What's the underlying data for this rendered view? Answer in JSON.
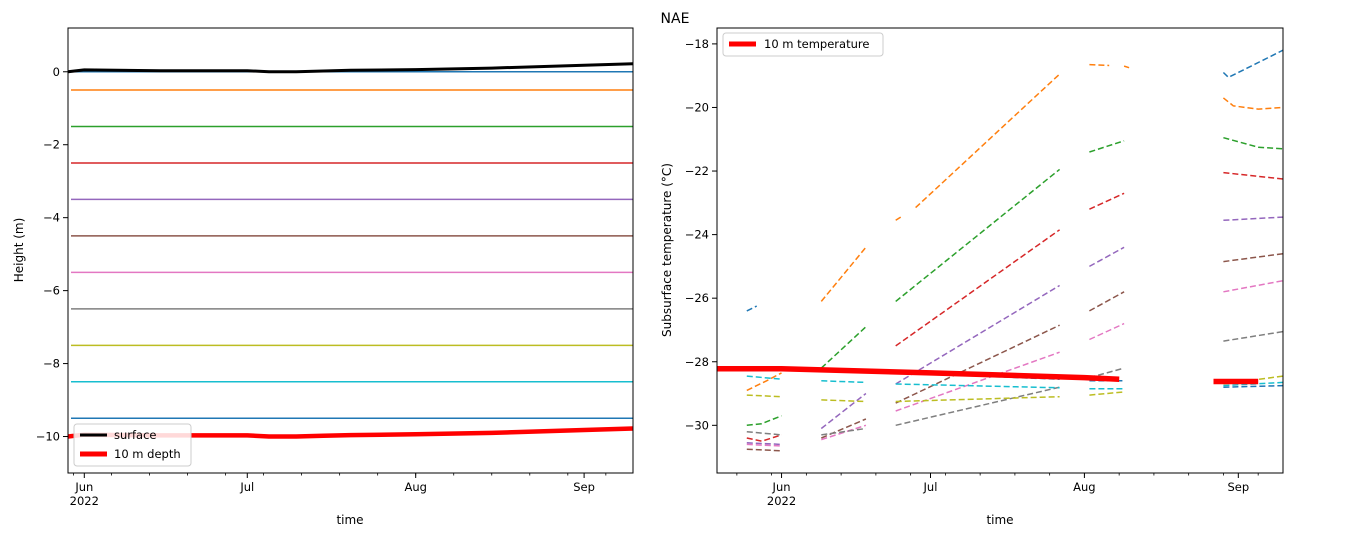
{
  "suptitle": "NAE",
  "colors": {
    "c0": "#1f77b4",
    "c1": "#ff7f0e",
    "c2": "#2ca02c",
    "c3": "#d62728",
    "c4": "#9467bd",
    "c5": "#8c564b",
    "c6": "#e377c2",
    "c7": "#7f7f7f",
    "c8": "#bcbd22",
    "c9": "#17becf",
    "surface": "#000000",
    "depth": "#ff0000"
  },
  "chart_data": [
    {
      "type": "line",
      "xlabel": "time",
      "ylabel": "Height (m)",
      "xlim": [
        "2022-05-29",
        "2022-09-10"
      ],
      "ylim": [
        -11,
        1.2
      ],
      "x_ticks": [
        {
          "date": "2022-06-01",
          "label": "Jun",
          "sublabel": "2022"
        },
        {
          "date": "2022-07-01",
          "label": "Jul",
          "sublabel": ""
        },
        {
          "date": "2022-08-01",
          "label": "Aug",
          "sublabel": ""
        },
        {
          "date": "2022-09-01",
          "label": "Sep",
          "sublabel": ""
        }
      ],
      "y_ticks": [
        {
          "value": 0,
          "label": "0"
        },
        {
          "value": -2,
          "label": "−2"
        },
        {
          "value": -4,
          "label": "−4"
        },
        {
          "value": -6,
          "label": "−6"
        },
        {
          "value": -8,
          "label": "−8"
        },
        {
          "value": -10,
          "label": "−10"
        }
      ],
      "legend": {
        "position": "lower-left",
        "entries": [
          "surface",
          "10 m depth"
        ]
      },
      "sensor_depths": [
        0,
        -0.5,
        -1.5,
        -2.5,
        -3.5,
        -4.5,
        -5.5,
        -6.5,
        -7.5,
        -8.5,
        -9.5
      ],
      "sensor_color_keys": [
        "c0",
        "c1",
        "c2",
        "c3",
        "c4",
        "c5",
        "c6",
        "c7",
        "c8",
        "c9",
        "c0"
      ],
      "surface": {
        "x": [
          "2022-05-29",
          "2022-06-01",
          "2022-06-15",
          "2022-07-01",
          "2022-07-05",
          "2022-07-10",
          "2022-07-15",
          "2022-07-20",
          "2022-08-01",
          "2022-08-15",
          "2022-09-01",
          "2022-09-10"
        ],
        "y": [
          0.0,
          0.05,
          0.03,
          0.03,
          0.0,
          0.0,
          0.02,
          0.04,
          0.06,
          0.1,
          0.18,
          0.22
        ]
      },
      "depth10": {
        "x": [
          "2022-05-29",
          "2022-06-01",
          "2022-06-15",
          "2022-07-01",
          "2022-07-05",
          "2022-07-10",
          "2022-07-15",
          "2022-07-20",
          "2022-08-01",
          "2022-08-15",
          "2022-09-01",
          "2022-09-10"
        ],
        "y": [
          -10.0,
          -9.95,
          -9.97,
          -9.97,
          -10.0,
          -10.0,
          -9.98,
          -9.96,
          -9.94,
          -9.9,
          -9.82,
          -9.78
        ]
      }
    },
    {
      "type": "line",
      "xlabel": "time",
      "ylabel": "Subsurface temperature (°C)",
      "xlim": [
        "2022-05-19",
        "2022-09-10"
      ],
      "ylim": [
        -31.5,
        -17.5
      ],
      "x_ticks": [
        {
          "date": "2022-06-01",
          "label": "Jun",
          "sublabel": "2022"
        },
        {
          "date": "2022-07-01",
          "label": "Jul",
          "sublabel": ""
        },
        {
          "date": "2022-08-01",
          "label": "Aug",
          "sublabel": ""
        },
        {
          "date": "2022-09-01",
          "label": "Sep",
          "sublabel": ""
        }
      ],
      "y_ticks": [
        {
          "value": -18,
          "label": "−18"
        },
        {
          "value": -20,
          "label": "−20"
        },
        {
          "value": -22,
          "label": "−22"
        },
        {
          "value": -24,
          "label": "−24"
        },
        {
          "value": -26,
          "label": "−26"
        },
        {
          "value": -28,
          "label": "−28"
        },
        {
          "value": -30,
          "label": "−30"
        }
      ],
      "legend": {
        "position": "upper-left",
        "entries": [
          "10 m temperature"
        ]
      },
      "series": [
        {
          "color": "c0",
          "segments": [
            [
              [
                "2022-05-25",
                -26.4
              ],
              [
                "2022-05-27",
                -26.25
              ]
            ],
            [
              [
                "2022-08-29",
                -18.9
              ],
              [
                "2022-08-30",
                -19.05
              ],
              [
                "2022-09-01",
                -18.9
              ],
              [
                "2022-09-10",
                -18.2
              ]
            ]
          ]
        },
        {
          "color": "c1",
          "segments": [
            [
              [
                "2022-05-25",
                -28.9
              ],
              [
                "2022-05-29",
                -28.6
              ],
              [
                "2022-06-01",
                -28.35
              ]
            ],
            [
              [
                "2022-06-09",
                -26.1
              ],
              [
                "2022-06-18",
                -24.4
              ]
            ],
            [
              [
                "2022-06-24",
                -23.55
              ],
              [
                "2022-06-25",
                -23.45
              ]
            ],
            [
              [
                "2022-06-28",
                -23.15
              ],
              [
                "2022-07-27",
                -18.95
              ]
            ],
            [
              [
                "2022-08-02",
                -18.65
              ],
              [
                "2022-08-06",
                -18.68
              ]
            ],
            [
              [
                "2022-08-09",
                -18.7
              ],
              [
                "2022-08-10",
                -18.75
              ]
            ],
            [
              [
                "2022-08-29",
                -19.7
              ],
              [
                "2022-08-31",
                -19.95
              ],
              [
                "2022-09-05",
                -20.05
              ],
              [
                "2022-09-10",
                -20.0
              ]
            ]
          ]
        },
        {
          "color": "c2",
          "segments": [
            [
              [
                "2022-05-25",
                -30.0
              ],
              [
                "2022-05-28",
                -29.95
              ],
              [
                "2022-06-01",
                -29.7
              ]
            ],
            [
              [
                "2022-06-09",
                -28.2
              ],
              [
                "2022-06-18",
                -26.9
              ]
            ],
            [
              [
                "2022-06-24",
                -26.1
              ],
              [
                "2022-07-27",
                -21.95
              ]
            ],
            [
              [
                "2022-08-02",
                -21.4
              ],
              [
                "2022-08-09",
                -21.05
              ]
            ],
            [
              [
                "2022-08-29",
                -20.95
              ],
              [
                "2022-09-05",
                -21.25
              ],
              [
                "2022-09-10",
                -21.3
              ]
            ]
          ]
        },
        {
          "color": "c3",
          "segments": [
            [
              [
                "2022-05-25",
                -30.4
              ],
              [
                "2022-05-28",
                -30.5
              ],
              [
                "2022-06-01",
                -30.3
              ]
            ],
            [
              [
                "2022-06-24",
                -27.5
              ],
              [
                "2022-07-27",
                -23.85
              ]
            ],
            [
              [
                "2022-08-02",
                -23.2
              ],
              [
                "2022-08-09",
                -22.7
              ]
            ],
            [
              [
                "2022-08-29",
                -22.05
              ],
              [
                "2022-09-10",
                -22.25
              ]
            ]
          ]
        },
        {
          "color": "c4",
          "segments": [
            [
              [
                "2022-05-25",
                -30.55
              ],
              [
                "2022-06-01",
                -30.6
              ]
            ],
            [
              [
                "2022-06-09",
                -30.1
              ],
              [
                "2022-06-18",
                -29.0
              ]
            ],
            [
              [
                "2022-06-24",
                -28.7
              ],
              [
                "2022-07-27",
                -25.6
              ]
            ],
            [
              [
                "2022-08-02",
                -25.0
              ],
              [
                "2022-08-09",
                -24.4
              ]
            ],
            [
              [
                "2022-08-29",
                -23.55
              ],
              [
                "2022-09-10",
                -23.45
              ]
            ]
          ]
        },
        {
          "color": "c5",
          "segments": [
            [
              [
                "2022-05-25",
                -30.75
              ],
              [
                "2022-06-01",
                -30.8
              ]
            ],
            [
              [
                "2022-06-09",
                -30.4
              ],
              [
                "2022-06-18",
                -29.8
              ]
            ],
            [
              [
                "2022-06-24",
                -29.3
              ],
              [
                "2022-07-27",
                -26.85
              ]
            ],
            [
              [
                "2022-08-02",
                -26.4
              ],
              [
                "2022-08-09",
                -25.8
              ]
            ],
            [
              [
                "2022-08-29",
                -24.85
              ],
              [
                "2022-09-10",
                -24.6
              ]
            ]
          ]
        },
        {
          "color": "c6",
          "segments": [
            [
              [
                "2022-05-25",
                -30.6
              ],
              [
                "2022-06-01",
                -30.65
              ]
            ],
            [
              [
                "2022-06-09",
                -30.45
              ],
              [
                "2022-06-18",
                -30.0
              ]
            ],
            [
              [
                "2022-06-24",
                -29.55
              ],
              [
                "2022-07-27",
                -27.7
              ]
            ],
            [
              [
                "2022-08-02",
                -27.3
              ],
              [
                "2022-08-09",
                -26.8
              ]
            ],
            [
              [
                "2022-08-29",
                -25.8
              ],
              [
                "2022-09-10",
                -25.45
              ]
            ]
          ]
        },
        {
          "color": "c7",
          "segments": [
            [
              [
                "2022-05-25",
                -30.2
              ],
              [
                "2022-06-01",
                -30.3
              ]
            ],
            [
              [
                "2022-06-09",
                -30.3
              ],
              [
                "2022-06-18",
                -30.1
              ]
            ],
            [
              [
                "2022-06-24",
                -30.0
              ],
              [
                "2022-07-27",
                -28.8
              ]
            ],
            [
              [
                "2022-08-02",
                -28.5
              ],
              [
                "2022-08-09",
                -28.2
              ]
            ],
            [
              [
                "2022-08-29",
                -27.35
              ],
              [
                "2022-09-10",
                -27.05
              ]
            ]
          ]
        },
        {
          "color": "c8",
          "segments": [
            [
              [
                "2022-05-25",
                -29.05
              ],
              [
                "2022-06-01",
                -29.1
              ]
            ],
            [
              [
                "2022-06-09",
                -29.2
              ],
              [
                "2022-06-18",
                -29.25
              ]
            ],
            [
              [
                "2022-06-24",
                -29.25
              ],
              [
                "2022-07-27",
                -29.1
              ]
            ],
            [
              [
                "2022-08-02",
                -29.05
              ],
              [
                "2022-08-09",
                -28.95
              ]
            ],
            [
              [
                "2022-08-29",
                -28.7
              ],
              [
                "2022-09-10",
                -28.45
              ]
            ]
          ]
        },
        {
          "color": "c9",
          "segments": [
            [
              [
                "2022-05-25",
                -28.45
              ],
              [
                "2022-06-01",
                -28.55
              ]
            ],
            [
              [
                "2022-06-09",
                -28.6
              ],
              [
                "2022-06-18",
                -28.65
              ]
            ],
            [
              [
                "2022-06-24",
                -28.7
              ],
              [
                "2022-07-27",
                -28.82
              ]
            ],
            [
              [
                "2022-08-02",
                -28.85
              ],
              [
                "2022-08-09",
                -28.85
              ]
            ],
            [
              [
                "2022-08-29",
                -28.75
              ],
              [
                "2022-09-10",
                -28.65
              ]
            ]
          ]
        },
        {
          "color": "c0",
          "segments": [
            [
              [
                "2022-06-09",
                -28.2
              ],
              [
                "2022-06-18",
                -28.3
              ]
            ],
            [
              [
                "2022-06-24",
                -28.35
              ],
              [
                "2022-07-27",
                -28.55
              ]
            ],
            [
              [
                "2022-08-02",
                -28.6
              ],
              [
                "2022-08-09",
                -28.6
              ]
            ],
            [
              [
                "2022-08-29",
                -28.8
              ],
              [
                "2022-09-10",
                -28.75
              ]
            ]
          ]
        }
      ],
      "temp10m": {
        "segments": [
          [
            [
              "2022-05-19",
              -28.22
            ],
            [
              "2022-06-01",
              -28.22
            ],
            [
              "2022-07-01",
              -28.35
            ],
            [
              "2022-08-01",
              -28.5
            ],
            [
              "2022-08-08",
              -28.55
            ]
          ],
          [
            [
              "2022-08-27",
              -28.62
            ],
            [
              "2022-09-05",
              -28.62
            ]
          ]
        ]
      }
    }
  ]
}
